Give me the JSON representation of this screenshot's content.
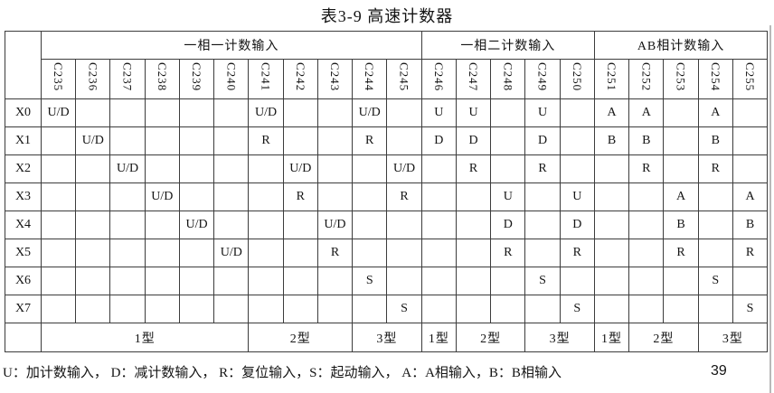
{
  "title": "表3-9 高速计数器",
  "colors": {
    "border": "#3c3c3c",
    "text": "#141414",
    "background": "#ffffff",
    "artifact": "#b9b9b9"
  },
  "table": {
    "groups": [
      {
        "label": "一相一计数输入",
        "span": 11
      },
      {
        "label": "一相二计数输入",
        "span": 5
      },
      {
        "label": "AB相计数输入",
        "span": 5
      }
    ],
    "counters": [
      "C235",
      "C236",
      "C237",
      "C238",
      "C239",
      "C240",
      "C241",
      "C242",
      "C243",
      "C244",
      "C245",
      "C246",
      "C247",
      "C248",
      "C249",
      "C250",
      "C251",
      "C252",
      "C253",
      "C254",
      "C255"
    ],
    "rows": [
      {
        "label": "X0",
        "cells": [
          "U/D",
          "",
          "",
          "",
          "",
          "",
          "U/D",
          "",
          "",
          "U/D",
          "",
          "U",
          "U",
          "",
          "U",
          "",
          "A",
          "A",
          "",
          "A",
          ""
        ]
      },
      {
        "label": "X1",
        "cells": [
          "",
          "U/D",
          "",
          "",
          "",
          "",
          "R",
          "",
          "",
          "R",
          "",
          "D",
          "D",
          "",
          "D",
          "",
          "B",
          "B",
          "",
          "B",
          ""
        ]
      },
      {
        "label": "X2",
        "cells": [
          "",
          "",
          "U/D",
          "",
          "",
          "",
          "",
          "U/D",
          "",
          "",
          "U/D",
          "",
          "R",
          "",
          "R",
          "",
          "",
          "R",
          "",
          "R",
          ""
        ]
      },
      {
        "label": "X3",
        "cells": [
          "",
          "",
          "",
          "U/D",
          "",
          "",
          "",
          "R",
          "",
          "",
          "R",
          "",
          "",
          "U",
          "",
          "U",
          "",
          "",
          "A",
          "",
          "A"
        ]
      },
      {
        "label": "X4",
        "cells": [
          "",
          "",
          "",
          "",
          "U/D",
          "",
          "",
          "",
          "U/D",
          "",
          "",
          "",
          "",
          "D",
          "",
          "D",
          "",
          "",
          "B",
          "",
          "B"
        ]
      },
      {
        "label": "X5",
        "cells": [
          "",
          "",
          "",
          "",
          "",
          "U/D",
          "",
          "",
          "R",
          "",
          "",
          "",
          "",
          "R",
          "",
          "R",
          "",
          "",
          "R",
          "",
          "R"
        ]
      },
      {
        "label": "X6",
        "cells": [
          "",
          "",
          "",
          "",
          "",
          "",
          "",
          "",
          "",
          "S",
          "",
          "",
          "",
          "",
          "S",
          "",
          "",
          "",
          "",
          "S",
          ""
        ]
      },
      {
        "label": "X7",
        "cells": [
          "",
          "",
          "",
          "",
          "",
          "",
          "",
          "",
          "",
          "",
          "S",
          "",
          "",
          "",
          "",
          "S",
          "",
          "",
          "",
          "",
          "S"
        ]
      }
    ],
    "type_row": [
      {
        "label": "1型",
        "span": 6
      },
      {
        "label": "2型",
        "span": 3
      },
      {
        "label": "3型",
        "span": 2
      },
      {
        "label": "1型",
        "span": 1
      },
      {
        "label": "2型",
        "span": 2
      },
      {
        "label": "3型",
        "span": 2
      },
      {
        "label": "1型",
        "span": 1
      },
      {
        "label": "2型",
        "span": 2
      },
      {
        "label": "3型",
        "span": 2
      }
    ]
  },
  "footer": {
    "legend": "U：加计数输入， D：减计数输入， R：复位输入，S：起动输入， A：A相输入，B：B相输入",
    "page_number": "39"
  }
}
